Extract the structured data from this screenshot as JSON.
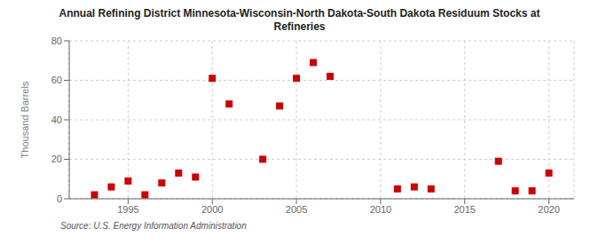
{
  "chart_data": {
    "type": "scatter",
    "title": "Annual Refining District Minnesota-Wisconsin-North Dakota-South Dakota Residuum Stocks at\nRefineries",
    "ylabel": "Thousand Barrels",
    "annotations": [
      "Source: U.S. Energy Information Administration"
    ],
    "x": [
      1993,
      1994,
      1995,
      1996,
      1997,
      1998,
      1999,
      2000,
      2001,
      2003,
      2004,
      2005,
      2006,
      2007,
      2011,
      2012,
      2013,
      2017,
      2018,
      2019,
      2020
    ],
    "values": [
      2,
      6,
      9,
      2,
      8,
      13,
      11,
      61,
      48,
      20,
      47,
      61,
      69,
      62,
      5,
      6,
      5,
      19,
      4,
      4,
      13
    ],
    "color": "#cc0000",
    "marker": "square",
    "xlim": [
      1991.5,
      2021.5
    ],
    "ylim": [
      0,
      80
    ],
    "xticks": [
      1995,
      2000,
      2005,
      2010,
      2015,
      2020
    ],
    "yticks": [
      0,
      20,
      40,
      60,
      80
    ],
    "grid": true
  }
}
